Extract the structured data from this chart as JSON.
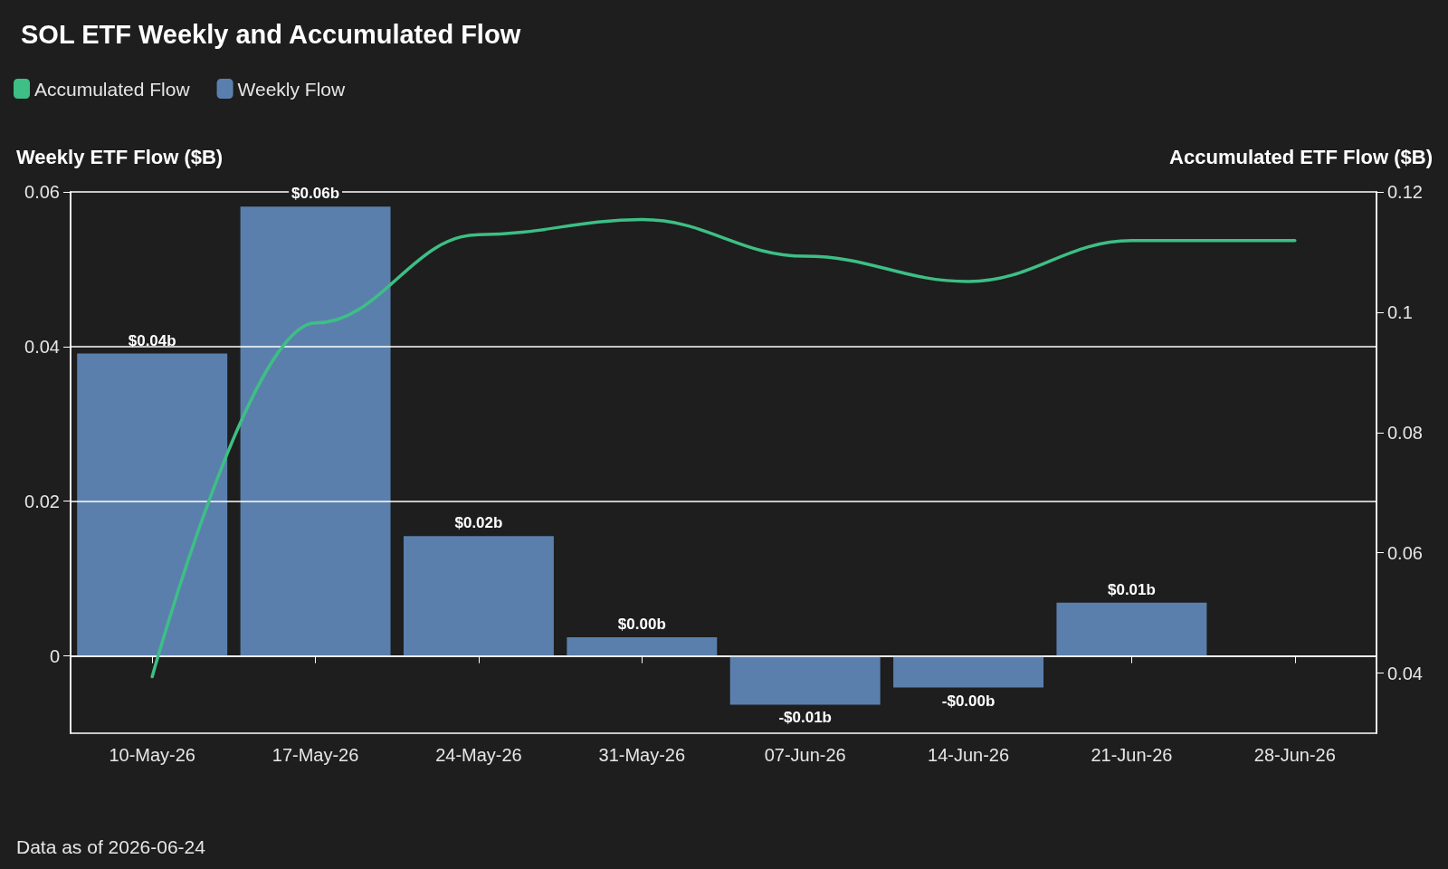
{
  "chart_data": {
    "type": "bar",
    "title": "SOL ETF Weekly and Accumulated Flow",
    "categories": [
      "10-May-26",
      "17-May-26",
      "24-May-26",
      "31-May-26",
      "07-Jun-26",
      "14-Jun-26",
      "21-Jun-26",
      "28-Jun-26"
    ],
    "series": [
      {
        "name": "Accumulated Flow",
        "type": "line",
        "axis": "y2",
        "color": "#3dbf85",
        "values": [
          0.0394,
          0.0982,
          0.1129,
          0.1154,
          0.1093,
          0.1051,
          0.1119,
          0.1119
        ]
      },
      {
        "name": "Weekly Flow",
        "color": "#5b7fad",
        "values": [
          0.0391,
          0.0581,
          0.0155,
          0.0024,
          -0.0063,
          -0.0041,
          0.0069,
          null
        ],
        "value_labels": [
          "$0.04b",
          "$0.06b",
          "$0.02b",
          "$0.00b",
          "-$0.01b",
          "-$0.00b",
          "$0.01b",
          null
        ]
      }
    ],
    "ylabel": "Weekly ETF Flow ($B)",
    "y2label": "Accumulated ETF Flow ($B)",
    "ylim": [
      -0.01,
      0.06
    ],
    "yticks": [
      0,
      0.02,
      0.04,
      0.06
    ],
    "y2lim": [
      0.03,
      0.12
    ],
    "y2ticks": [
      0.04,
      0.06,
      0.08,
      0.1,
      0.12
    ],
    "grid": "y",
    "legend": "top left",
    "marker": "none",
    "line_style": "solid",
    "annotations": [
      "Data as of 2026-06-24"
    ]
  }
}
